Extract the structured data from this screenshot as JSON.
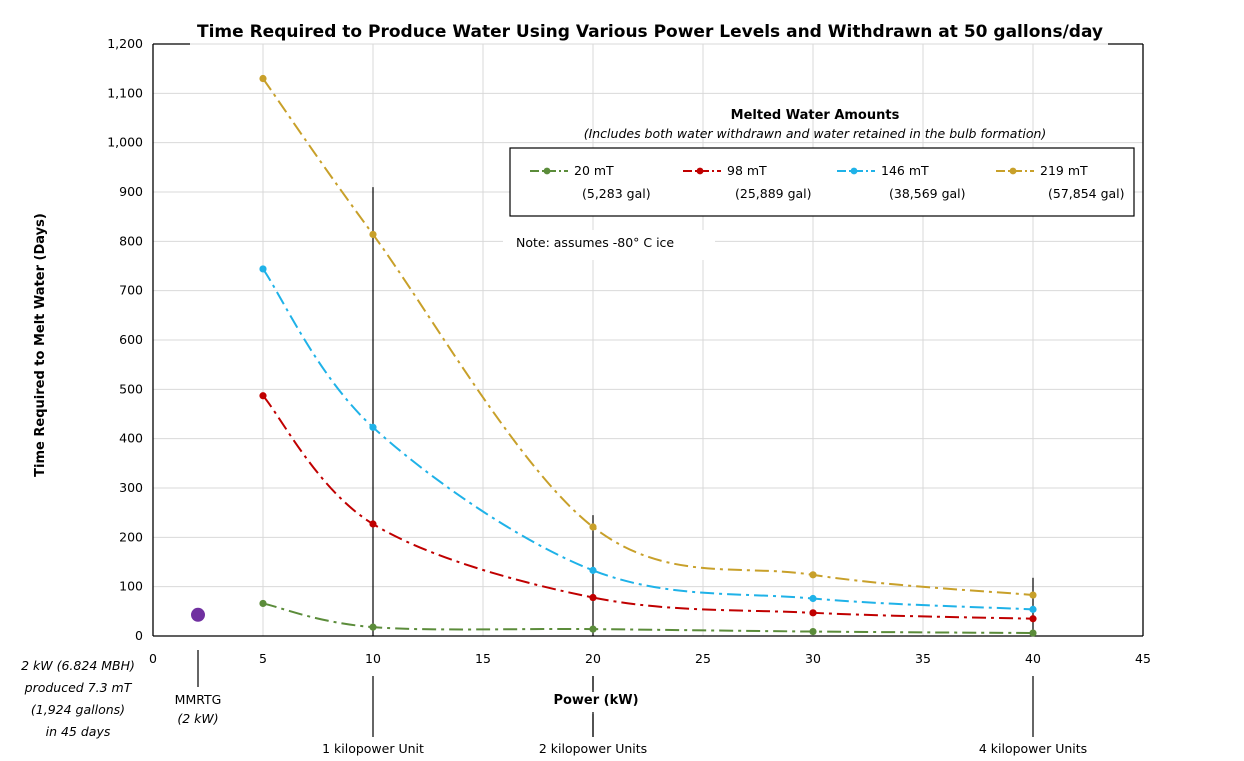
{
  "chart_data": {
    "type": "line",
    "title": "Time Required to Produce Water Using Various Power Levels and Withdrawn at 50 gallons/day",
    "xlabel": "Power (kW)",
    "ylabel": "Time Required to Melt Water (Days)",
    "xlim": [
      0,
      45
    ],
    "ylim": [
      0,
      1200
    ],
    "xticks": [
      0,
      5,
      10,
      15,
      20,
      25,
      30,
      35,
      40,
      45
    ],
    "xtick_labels": [
      "0",
      "5",
      "10",
      "15",
      "20",
      "25",
      "30",
      "35",
      "40",
      "45"
    ],
    "yticks": [
      0,
      100,
      200,
      300,
      400,
      500,
      600,
      700,
      800,
      900,
      1000,
      1100,
      1200
    ],
    "ytick_labels": [
      "0",
      "100",
      "200",
      "300",
      "400",
      "500",
      "600",
      "700",
      "800",
      "900",
      "1,000",
      "1,100",
      "1,200"
    ],
    "grid": true,
    "legend": {
      "title": "Melted Water Amounts",
      "subtitle": "(Includes both water withdrawn and water retained in the bulb formation)",
      "placement": "top-right"
    },
    "note": "Note:  assumes -80° C ice",
    "x": [
      5,
      10,
      20,
      30,
      40
    ],
    "series": [
      {
        "name": "20 mT",
        "sub": "(5,283 gal)",
        "color": "#5b8c3a",
        "values": [
          66,
          18,
          14,
          9,
          6
        ]
      },
      {
        "name": "98 mT",
        "sub": "(25,889 gal)",
        "color": "#c00000",
        "values": [
          487,
          227,
          78,
          47,
          35
        ]
      },
      {
        "name": "146 mT",
        "sub": "(38,569 gal)",
        "color": "#1fb2e8",
        "values": [
          744,
          423,
          133,
          76,
          54
        ]
      },
      {
        "name": "219 mT",
        "sub": "(57,854 gal)",
        "color": "#c8a02a",
        "values": [
          1130,
          814,
          221,
          124,
          83
        ]
      }
    ],
    "vertical_markers": [
      {
        "x": 10,
        "y_top": 910,
        "label": "1 kilopower Unit"
      },
      {
        "x": 20,
        "y_top": 245,
        "label": "2 kilopower Units"
      },
      {
        "x": 40,
        "y_top": 118,
        "label": "4 kilopower Units"
      }
    ],
    "mmrtg_point": {
      "x": 2,
      "y": 45,
      "color": "#7030a0",
      "label": "MMRTG",
      "sublabel": "(2 kW)"
    },
    "side_annotation": [
      "2 kW (6.824 MBH)",
      "produced 7.3 mT",
      "(1,924 gallons)",
      "in 45 days"
    ]
  }
}
